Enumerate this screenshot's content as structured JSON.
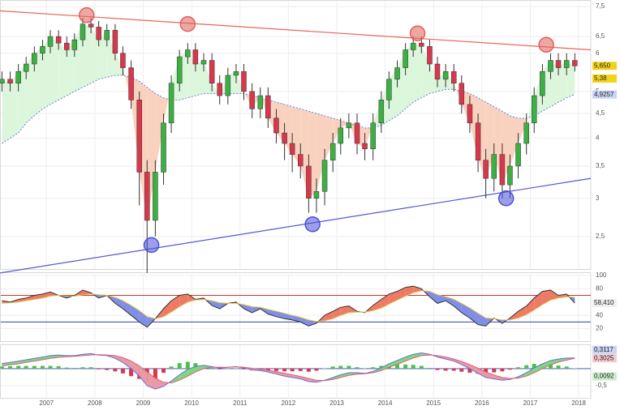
{
  "chart_data": [
    {
      "type": "candlestick",
      "x": [
        2006.08,
        2006.25,
        2006.42,
        2006.58,
        2006.75,
        2006.92,
        2007.08,
        2007.25,
        2007.42,
        2007.58,
        2007.75,
        2007.92,
        2008.08,
        2008.25,
        2008.42,
        2008.58,
        2008.75,
        2008.92,
        2009.08,
        2009.25,
        2009.42,
        2009.58,
        2009.75,
        2009.92,
        2010.08,
        2010.25,
        2010.42,
        2010.58,
        2010.75,
        2010.92,
        2011.08,
        2011.25,
        2011.42,
        2011.58,
        2011.75,
        2011.92,
        2012.08,
        2012.25,
        2012.42,
        2012.58,
        2012.75,
        2012.92,
        2013.08,
        2013.25,
        2013.42,
        2013.58,
        2013.75,
        2013.92,
        2014.08,
        2014.25,
        2014.42,
        2014.58,
        2014.75,
        2014.92,
        2015.08,
        2015.25,
        2015.42,
        2015.58,
        2015.75,
        2015.92,
        2016.08,
        2016.25,
        2016.42,
        2016.58,
        2016.75,
        2016.92,
        2017.08,
        2017.25,
        2017.42,
        2017.58,
        2017.75,
        2017.92
      ],
      "open": [
        5.2,
        5.3,
        5.2,
        5.5,
        5.7,
        6.0,
        6.2,
        6.5,
        6.3,
        6.1,
        6.4,
        6.9,
        6.8,
        6.4,
        6.7,
        6.0,
        5.6,
        4.8,
        3.4,
        2.7,
        3.4,
        4.3,
        5.2,
        5.9,
        6.1,
        5.7,
        5.8,
        5.2,
        4.9,
        5.4,
        5.5,
        5.0,
        4.6,
        4.9,
        4.4,
        4.1,
        3.9,
        3.7,
        3.5,
        3.0,
        3.1,
        3.6,
        3.9,
        4.2,
        4.3,
        3.9,
        3.8,
        4.3,
        4.8,
        5.3,
        5.6,
        6.1,
        6.3,
        6.2,
        5.7,
        5.3,
        5.5,
        5.2,
        4.7,
        4.3,
        3.6,
        3.3,
        3.7,
        3.2,
        3.5,
        3.9,
        4.3,
        4.9,
        5.5,
        5.8,
        5.6,
        5.8
      ],
      "high": [
        5.5,
        5.5,
        5.7,
        5.9,
        6.2,
        6.4,
        6.7,
        6.7,
        6.5,
        6.6,
        7.1,
        7.1,
        7.0,
        6.9,
        6.9,
        6.2,
        5.8,
        5.0,
        3.6,
        3.6,
        4.5,
        5.4,
        6.1,
        6.3,
        6.3,
        6.0,
        6.0,
        5.4,
        5.6,
        5.7,
        5.7,
        5.2,
        5.1,
        5.1,
        4.6,
        4.3,
        4.1,
        3.9,
        3.7,
        3.3,
        3.8,
        4.1,
        4.4,
        4.5,
        4.5,
        4.1,
        4.5,
        5.0,
        5.5,
        5.8,
        6.3,
        6.5,
        6.5,
        6.4,
        5.9,
        5.7,
        5.7,
        5.4,
        4.9,
        4.5,
        3.8,
        3.9,
        3.9,
        3.7,
        4.1,
        4.5,
        5.1,
        5.7,
        6.0,
        6.0,
        6.0,
        6.0
      ],
      "low": [
        5.0,
        5.0,
        5.0,
        5.3,
        5.5,
        5.8,
        6.0,
        6.1,
        5.9,
        5.9,
        6.2,
        6.6,
        6.2,
        6.2,
        5.8,
        5.4,
        4.6,
        2.9,
        2.1,
        2.5,
        3.2,
        4.1,
        5.0,
        5.7,
        5.5,
        5.5,
        5.0,
        4.7,
        4.7,
        5.2,
        4.8,
        4.4,
        4.4,
        4.2,
        3.9,
        3.6,
        3.4,
        3.3,
        2.8,
        2.8,
        2.9,
        3.4,
        3.7,
        4.0,
        3.7,
        3.6,
        3.6,
        4.1,
        4.6,
        5.1,
        5.4,
        5.9,
        6.0,
        5.5,
        5.1,
        5.1,
        5.0,
        4.5,
        4.1,
        3.4,
        3.0,
        3.1,
        3.0,
        3.0,
        3.3,
        3.7,
        4.1,
        4.7,
        5.3,
        5.4,
        5.4,
        5.5
      ],
      "close": [
        5.3,
        5.2,
        5.5,
        5.7,
        6.0,
        6.2,
        6.5,
        6.3,
        6.1,
        6.4,
        6.9,
        6.8,
        6.4,
        6.7,
        6.0,
        5.6,
        4.8,
        3.4,
        2.7,
        3.4,
        4.3,
        5.2,
        5.9,
        6.1,
        5.7,
        5.8,
        5.2,
        4.9,
        5.4,
        5.5,
        5.0,
        4.6,
        4.9,
        4.4,
        4.1,
        3.9,
        3.7,
        3.5,
        3.0,
        3.1,
        3.6,
        3.9,
        4.2,
        4.3,
        3.9,
        3.8,
        4.3,
        4.8,
        5.3,
        5.6,
        6.1,
        6.3,
        6.2,
        5.7,
        5.3,
        5.5,
        5.2,
        4.7,
        4.3,
        3.6,
        3.3,
        3.7,
        3.2,
        3.5,
        3.9,
        4.3,
        4.9,
        5.5,
        5.8,
        5.6,
        5.8,
        5.65
      ],
      "up_color": "#3cb043",
      "down_color": "#d9374b",
      "ma": {
        "values": [
          3.9,
          4.0,
          4.1,
          4.3,
          4.45,
          4.6,
          4.7,
          4.8,
          4.9,
          5.0,
          5.1,
          5.2,
          5.3,
          5.35,
          5.4,
          5.4,
          5.35,
          5.25,
          5.1,
          4.95,
          4.85,
          4.8,
          4.8,
          4.85,
          4.9,
          4.95,
          4.95,
          4.95,
          4.95,
          4.95,
          4.95,
          4.9,
          4.85,
          4.8,
          4.75,
          4.7,
          4.65,
          4.6,
          4.55,
          4.5,
          4.45,
          4.4,
          4.35,
          4.3,
          4.25,
          4.2,
          4.2,
          4.25,
          4.35,
          4.45,
          4.6,
          4.75,
          4.85,
          4.95,
          5.0,
          5.05,
          5.05,
          5.0,
          4.95,
          4.85,
          4.75,
          4.65,
          4.55,
          4.45,
          4.4,
          4.4,
          4.45,
          4.55,
          4.65,
          4.75,
          4.85,
          4.93
        ],
        "color": "#6a7fd6"
      },
      "fill_up": "#dcf6dc",
      "fill_down": "#f9d2bf",
      "trendlines": [
        {
          "x": [
            2006.04,
            2018.25
          ],
          "y": [
            7.35,
            6.1
          ],
          "color": "#e8665a"
        },
        {
          "x": [
            2006.04,
            2018.25
          ],
          "y": [
            2.1,
            3.3
          ],
          "color": "#5558d0"
        }
      ],
      "markers": [
        {
          "x": 2007.83,
          "y": 7.2,
          "color": "#e0605a"
        },
        {
          "x": 2009.92,
          "y": 6.9,
          "color": "#e0605a"
        },
        {
          "x": 2014.67,
          "y": 6.6,
          "color": "#e0605a"
        },
        {
          "x": 2017.33,
          "y": 6.25,
          "color": "#e0605a"
        },
        {
          "x": 2009.17,
          "y": 2.4,
          "color": "#4a4fd8"
        },
        {
          "x": 2012.5,
          "y": 2.65,
          "color": "#4a4fd8"
        },
        {
          "x": 2016.5,
          "y": 3.0,
          "color": "#4a4fd8"
        }
      ],
      "xlim": [
        2006.04,
        2018.25
      ],
      "ylim": [
        2.14,
        7.74
      ],
      "log_y": true,
      "yticks": [
        {
          "value": 2.5,
          "label": "2,5"
        },
        3,
        {
          "value": 3.5,
          "label": "3,5"
        },
        4,
        {
          "value": 4.5,
          "label": "4,5"
        },
        5,
        6,
        {
          "value": 6.5,
          "label": "6,5"
        },
        {
          "value": 7.5,
          "label": "7,5"
        }
      ],
      "grid": true,
      "price_labels": [
        {
          "value": 5.65,
          "label": "5,650",
          "color": "#f3d21a"
        },
        {
          "value": 5.38,
          "label": "5,38",
          "color": "#f3d21a"
        },
        {
          "value": 4.9257,
          "label": "4,9257",
          "color": "#c9d3f5"
        }
      ]
    },
    {
      "type": "line",
      "x": [
        2006.08,
        2006.25,
        2006.42,
        2006.58,
        2006.75,
        2006.92,
        2007.08,
        2007.25,
        2007.42,
        2007.58,
        2007.75,
        2007.92,
        2008.08,
        2008.25,
        2008.42,
        2008.58,
        2008.75,
        2008.92,
        2009.08,
        2009.25,
        2009.42,
        2009.58,
        2009.75,
        2009.92,
        2010.08,
        2010.25,
        2010.42,
        2010.58,
        2010.75,
        2010.92,
        2011.08,
        2011.25,
        2011.42,
        2011.58,
        2011.75,
        2011.92,
        2012.08,
        2012.25,
        2012.42,
        2012.58,
        2012.75,
        2012.92,
        2013.08,
        2013.25,
        2013.42,
        2013.58,
        2013.75,
        2013.92,
        2014.08,
        2014.25,
        2014.42,
        2014.58,
        2014.75,
        2014.92,
        2015.08,
        2015.25,
        2015.42,
        2015.58,
        2015.75,
        2015.92,
        2016.08,
        2016.25,
        2016.42,
        2016.58,
        2016.75,
        2016.92,
        2017.08,
        2017.25,
        2017.42,
        2017.58,
        2017.75,
        2017.92
      ],
      "series": [
        {
          "color": "#333333",
          "values": [
            62,
            60,
            64,
            66,
            70,
            72,
            75,
            70,
            66,
            70,
            78,
            74,
            66,
            70,
            58,
            50,
            40,
            30,
            22,
            35,
            50,
            62,
            70,
            72,
            64,
            66,
            55,
            50,
            58,
            60,
            50,
            44,
            50,
            42,
            38,
            35,
            33,
            30,
            24,
            28,
            40,
            46,
            52,
            54,
            46,
            44,
            55,
            64,
            72,
            76,
            82,
            84,
            80,
            68,
            58,
            62,
            54,
            44,
            36,
            26,
            24,
            36,
            28,
            36,
            46,
            54,
            66,
            76,
            78,
            70,
            72,
            58.41
          ],
          "value_labels": {
            "71": "58,410"
          }
        },
        {
          "color": "#e6c04a",
          "values": [
            58,
            59,
            60,
            62,
            64,
            66,
            69,
            70,
            69,
            69,
            71,
            72,
            71,
            70,
            67,
            62,
            55,
            47,
            38,
            35,
            38,
            45,
            53,
            60,
            63,
            64,
            62,
            59,
            58,
            58,
            56,
            53,
            52,
            49,
            46,
            43,
            40,
            37,
            33,
            31,
            32,
            35,
            40,
            44,
            45,
            45,
            47,
            51,
            57,
            63,
            69,
            74,
            77,
            76,
            71,
            68,
            64,
            58,
            51,
            43,
            36,
            35,
            33,
            33,
            36,
            41,
            48,
            56,
            63,
            66,
            68,
            67
          ]
        }
      ],
      "fill_up": "#ee7a66",
      "fill_down": "#7d8fe6",
      "levels": [
        {
          "value": 70,
          "color": "#c0392b"
        },
        {
          "value": 30,
          "color": "#3340b0"
        }
      ],
      "xlim": [
        2006.04,
        2018.25
      ],
      "ylim": [
        0,
        106
      ],
      "yticks": [
        20,
        40,
        80,
        100
      ],
      "grid": true
    },
    {
      "type": "line",
      "x": [
        2006.08,
        2006.25,
        2006.42,
        2006.58,
        2006.75,
        2006.92,
        2007.08,
        2007.25,
        2007.42,
        2007.58,
        2007.75,
        2007.92,
        2008.08,
        2008.25,
        2008.42,
        2008.58,
        2008.75,
        2008.92,
        2009.08,
        2009.25,
        2009.42,
        2009.58,
        2009.75,
        2009.92,
        2010.08,
        2010.25,
        2010.42,
        2010.58,
        2010.75,
        2010.92,
        2011.08,
        2011.25,
        2011.42,
        2011.58,
        2011.75,
        2011.92,
        2012.08,
        2012.25,
        2012.42,
        2012.58,
        2012.75,
        2012.92,
        2013.08,
        2013.25,
        2013.42,
        2013.58,
        2013.75,
        2013.92,
        2014.08,
        2014.25,
        2014.42,
        2014.58,
        2014.75,
        2014.92,
        2015.08,
        2015.25,
        2015.42,
        2015.58,
        2015.75,
        2015.92,
        2016.08,
        2016.25,
        2016.42,
        2016.58,
        2016.75,
        2016.92,
        2017.08,
        2017.25,
        2017.42,
        2017.58,
        2017.75,
        2017.92
      ],
      "series": [
        {
          "color": "#6a6fe0",
          "values": [
            0.15,
            0.18,
            0.22,
            0.26,
            0.3,
            0.34,
            0.38,
            0.4,
            0.38,
            0.38,
            0.42,
            0.44,
            0.4,
            0.38,
            0.3,
            0.18,
            0.0,
            -0.22,
            -0.5,
            -0.6,
            -0.52,
            -0.36,
            -0.18,
            -0.02,
            0.06,
            0.1,
            0.06,
            0.02,
            0.04,
            0.06,
            0.02,
            -0.04,
            -0.06,
            -0.1,
            -0.16,
            -0.22,
            -0.26,
            -0.3,
            -0.38,
            -0.4,
            -0.34,
            -0.26,
            -0.18,
            -0.12,
            -0.12,
            -0.14,
            -0.08,
            0.02,
            0.14,
            0.24,
            0.34,
            0.42,
            0.46,
            0.42,
            0.34,
            0.28,
            0.22,
            0.12,
            0.0,
            -0.14,
            -0.26,
            -0.3,
            -0.34,
            -0.32,
            -0.24,
            -0.12,
            0.02,
            0.14,
            0.24,
            0.28,
            0.31,
            0.3117
          ],
          "value_labels": {
            "71": "0,3117"
          },
          "label_color": "#c9d3f5"
        },
        {
          "color": "#e06070",
          "values": [
            0.08,
            0.11,
            0.14,
            0.18,
            0.22,
            0.26,
            0.3,
            0.33,
            0.35,
            0.36,
            0.38,
            0.4,
            0.41,
            0.4,
            0.38,
            0.32,
            0.22,
            0.08,
            -0.1,
            -0.28,
            -0.4,
            -0.42,
            -0.34,
            -0.22,
            -0.1,
            0.0,
            0.04,
            0.04,
            0.04,
            0.05,
            0.04,
            0.01,
            -0.02,
            -0.05,
            -0.09,
            -0.14,
            -0.18,
            -0.23,
            -0.29,
            -0.34,
            -0.35,
            -0.32,
            -0.26,
            -0.2,
            -0.16,
            -0.15,
            -0.12,
            -0.06,
            0.04,
            0.12,
            0.22,
            0.31,
            0.38,
            0.4,
            0.38,
            0.34,
            0.28,
            0.21,
            0.12,
            0.01,
            -0.1,
            -0.19,
            -0.26,
            -0.29,
            -0.28,
            -0.22,
            -0.12,
            0.0,
            0.11,
            0.19,
            0.25,
            0.3025
          ],
          "value_labels": {
            "71": "0,3025"
          },
          "label_color": "#f6c9cf"
        }
      ],
      "histogram": {
        "values": [
          0.06,
          0.07,
          0.08,
          0.08,
          0.08,
          0.08,
          0.08,
          0.07,
          0.03,
          0.02,
          0.04,
          0.04,
          -0.02,
          -0.04,
          -0.08,
          -0.14,
          -0.22,
          -0.3,
          -0.4,
          -0.32,
          -0.12,
          0.06,
          0.16,
          0.2,
          0.16,
          0.1,
          0.02,
          -0.02,
          0.0,
          0.01,
          -0.02,
          -0.05,
          -0.04,
          -0.05,
          -0.07,
          -0.08,
          -0.08,
          -0.07,
          -0.09,
          -0.06,
          0.01,
          0.06,
          0.08,
          0.08,
          0.04,
          0.01,
          0.04,
          0.08,
          0.1,
          0.12,
          0.12,
          0.11,
          0.08,
          0.02,
          -0.04,
          -0.06,
          -0.06,
          -0.09,
          -0.12,
          -0.15,
          -0.16,
          -0.11,
          -0.08,
          -0.03,
          0.04,
          0.1,
          0.14,
          0.14,
          0.13,
          0.09,
          0.06,
          0.0092
        ],
        "value_labels": {
          "71": "0,0092"
        },
        "up_color": "#4cc04c",
        "down_color": "#d9374b",
        "label_color": "#c9efc9"
      },
      "fill_up": "#7ed67e",
      "fill_down": "#e89aa5",
      "xlim": [
        2006.04,
        2018.25
      ],
      "ylim": [
        -0.88,
        0.71
      ],
      "yticks": [
        {
          "value": -0.5,
          "label": "-0,5"
        }
      ],
      "xticks": [
        2007,
        2008,
        2009,
        2010,
        2011,
        2012,
        2013,
        2014,
        2015,
        2016,
        2017,
        2018
      ],
      "grid": true
    }
  ]
}
